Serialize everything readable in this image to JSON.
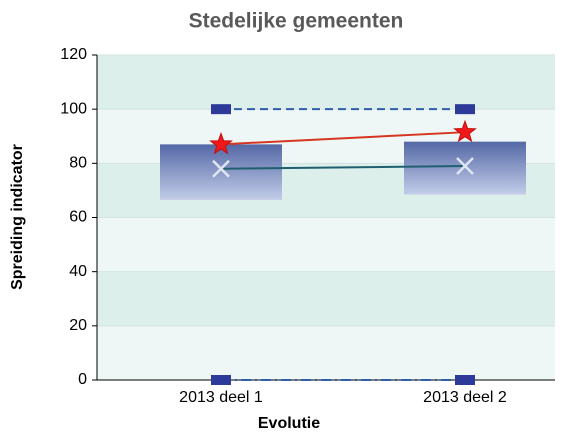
{
  "chart_data": {
    "type": "box",
    "title": "Stedelijke gemeenten",
    "x_label": "Evolutie",
    "y_label": "Spreiding indicator",
    "categories": [
      "2013 deel 1",
      "2013 deel 2"
    ],
    "ylim": [
      0,
      120
    ],
    "yticks": [
      0,
      20,
      40,
      60,
      80,
      100,
      120
    ],
    "box_low": {
      "values": [
        66.5,
        68.5
      ]
    },
    "box_high": {
      "values": [
        87,
        88
      ]
    },
    "max": {
      "values": [
        100,
        100
      ],
      "color": "#2e5fa8"
    },
    "min": {
      "values": [
        0,
        0
      ],
      "color": "#2e5fa8"
    },
    "mean": {
      "values": [
        78,
        79
      ],
      "color": "#1f5f6f"
    },
    "value": {
      "values": [
        87,
        91.5
      ],
      "color": "#d6361f"
    }
  }
}
